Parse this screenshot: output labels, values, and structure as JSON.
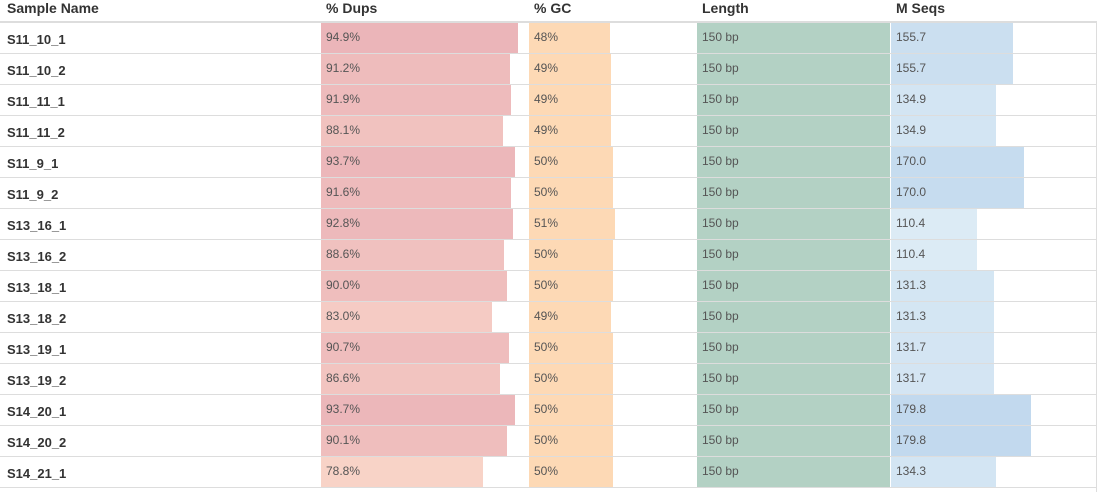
{
  "table": {
    "headers": {
      "sample_name": "Sample Name",
      "dups": "% Dups",
      "gc": "% GC",
      "length": "Length",
      "mseqs": "M Seqs"
    },
    "rows": [
      {
        "name": "S11_10_1",
        "dups": "94.9%",
        "dups_frac": 0.949,
        "gc": "48%",
        "gc_frac": 0.48,
        "length": "150 bp",
        "mseqs": "155.7"
      },
      {
        "name": "S11_10_2",
        "dups": "91.2%",
        "dups_frac": 0.912,
        "gc": "49%",
        "gc_frac": 0.49,
        "length": "150 bp",
        "mseqs": "155.7"
      },
      {
        "name": "S11_11_1",
        "dups": "91.9%",
        "dups_frac": 0.919,
        "gc": "49%",
        "gc_frac": 0.49,
        "length": "150 bp",
        "mseqs": "134.9"
      },
      {
        "name": "S11_11_2",
        "dups": "88.1%",
        "dups_frac": 0.881,
        "gc": "49%",
        "gc_frac": 0.49,
        "length": "150 bp",
        "mseqs": "134.9"
      },
      {
        "name": "S11_9_1",
        "dups": "93.7%",
        "dups_frac": 0.937,
        "gc": "50%",
        "gc_frac": 0.5,
        "length": "150 bp",
        "mseqs": "170.0"
      },
      {
        "name": "S11_9_2",
        "dups": "91.6%",
        "dups_frac": 0.916,
        "gc": "50%",
        "gc_frac": 0.5,
        "length": "150 bp",
        "mseqs": "170.0"
      },
      {
        "name": "S13_16_1",
        "dups": "92.8%",
        "dups_frac": 0.928,
        "gc": "51%",
        "gc_frac": 0.51,
        "length": "150 bp",
        "mseqs": "110.4"
      },
      {
        "name": "S13_16_2",
        "dups": "88.6%",
        "dups_frac": 0.886,
        "gc": "50%",
        "gc_frac": 0.5,
        "length": "150 bp",
        "mseqs": "110.4"
      },
      {
        "name": "S13_18_1",
        "dups": "90.0%",
        "dups_frac": 0.9,
        "gc": "50%",
        "gc_frac": 0.5,
        "length": "150 bp",
        "mseqs": "131.3"
      },
      {
        "name": "S13_18_2",
        "dups": "83.0%",
        "dups_frac": 0.83,
        "gc": "49%",
        "gc_frac": 0.49,
        "length": "150 bp",
        "mseqs": "131.3"
      },
      {
        "name": "S13_19_1",
        "dups": "90.7%",
        "dups_frac": 0.907,
        "gc": "50%",
        "gc_frac": 0.5,
        "length": "150 bp",
        "mseqs": "131.7"
      },
      {
        "name": "S13_19_2",
        "dups": "86.6%",
        "dups_frac": 0.866,
        "gc": "50%",
        "gc_frac": 0.5,
        "length": "150 bp",
        "mseqs": "131.7"
      },
      {
        "name": "S14_20_1",
        "dups": "93.7%",
        "dups_frac": 0.937,
        "gc": "50%",
        "gc_frac": 0.5,
        "length": "150 bp",
        "mseqs": "179.8"
      },
      {
        "name": "S14_20_2",
        "dups": "90.1%",
        "dups_frac": 0.901,
        "gc": "50%",
        "gc_frac": 0.5,
        "length": "150 bp",
        "mseqs": "179.8"
      },
      {
        "name": "S14_21_1",
        "dups": "78.8%",
        "dups_frac": 0.788,
        "gc": "50%",
        "gc_frac": 0.5,
        "length": "150 bp",
        "mseqs": "134.3"
      }
    ]
  },
  "colors": {
    "dups_bar": "#ebb5b9",
    "gc_bar": "#fdd9b5",
    "length_bar": "#b3d1c4",
    "mseqs_bar": "#c4dbee",
    "row_border": "#dddddd",
    "header_border": "#dddddd"
  }
}
